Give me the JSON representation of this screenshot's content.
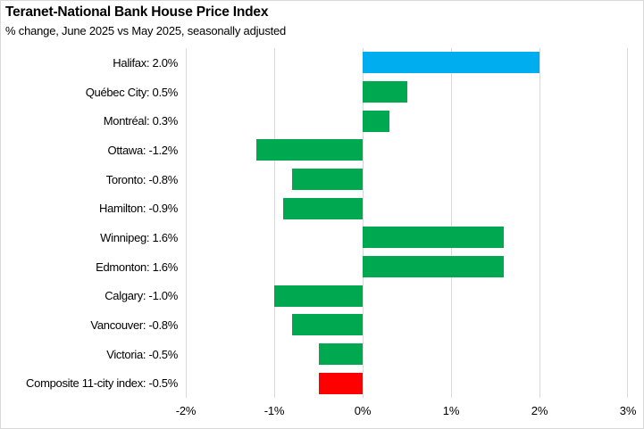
{
  "header": {
    "title": "Teranet-National Bank House Price Index",
    "subtitle": "% change, June 2025 vs May 2025, seasonally adjusted"
  },
  "chart_data": {
    "type": "bar",
    "orientation": "horizontal",
    "title": "Teranet-National Bank House Price Index",
    "subtitle": "% change, June 2025 vs May 2025, seasonally adjusted",
    "categories": [
      "Halifax",
      "Québec City",
      "Montréal",
      "Ottawa",
      "Toronto",
      "Hamilton",
      "Winnipeg",
      "Edmonton",
      "Calgary",
      "Vancouver",
      "Victoria",
      "Composite 11-city index"
    ],
    "values": [
      2.0,
      0.5,
      0.3,
      -1.2,
      -0.8,
      -0.9,
      1.6,
      1.6,
      -1.0,
      -0.8,
      -0.5,
      -0.5
    ],
    "display_labels": [
      "Halifax: 2.0%",
      "Québec City: 0.5%",
      "Montréal: 0.3%",
      "Ottawa: -1.2%",
      "Toronto: -0.8%",
      "Hamilton: -0.9%",
      "Winnipeg: 1.6%",
      "Edmonton: 1.6%",
      "Calgary: -1.0%",
      "Vancouver: -0.8%",
      "Victoria: -0.5%",
      "Composite 11-city index: -0.5%"
    ],
    "bar_colors": [
      "#00AEEF",
      "#00A94F",
      "#00A94F",
      "#00A94F",
      "#00A94F",
      "#00A94F",
      "#00A94F",
      "#00A94F",
      "#00A94F",
      "#00A94F",
      "#00A94F",
      "#FF0000"
    ],
    "xlim": [
      -2,
      3
    ],
    "x_ticks": [
      -2,
      -1,
      0,
      1,
      2,
      3
    ],
    "x_tick_labels": [
      "-2%",
      "-1%",
      "0%",
      "1%",
      "2%",
      "3%"
    ],
    "grid": true,
    "legend": "none",
    "colors": {
      "highlight_blue": "#00AEEF",
      "default_green": "#00A94F",
      "composite_red": "#FF0000",
      "gridline": "#D9D9D9",
      "text": "#000000"
    }
  }
}
